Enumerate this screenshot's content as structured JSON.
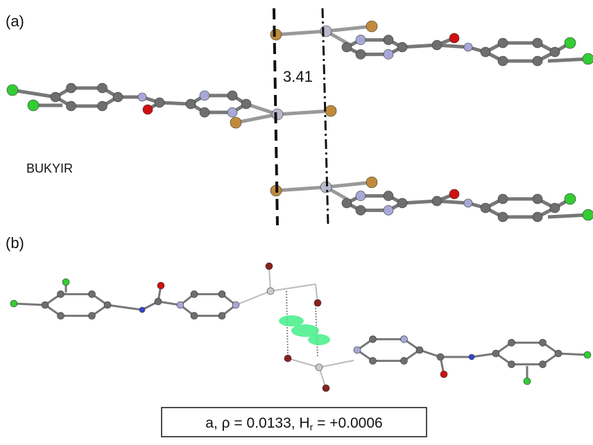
{
  "panel_a": {
    "label": "(a)",
    "distance": "3.41",
    "refcode": "BUKYIR"
  },
  "panel_b": {
    "label": "(b)",
    "caption": {
      "prefix": "a, ρ = 0.0133, H",
      "subscript": "r",
      "suffix": " = +0.0006"
    }
  }
}
